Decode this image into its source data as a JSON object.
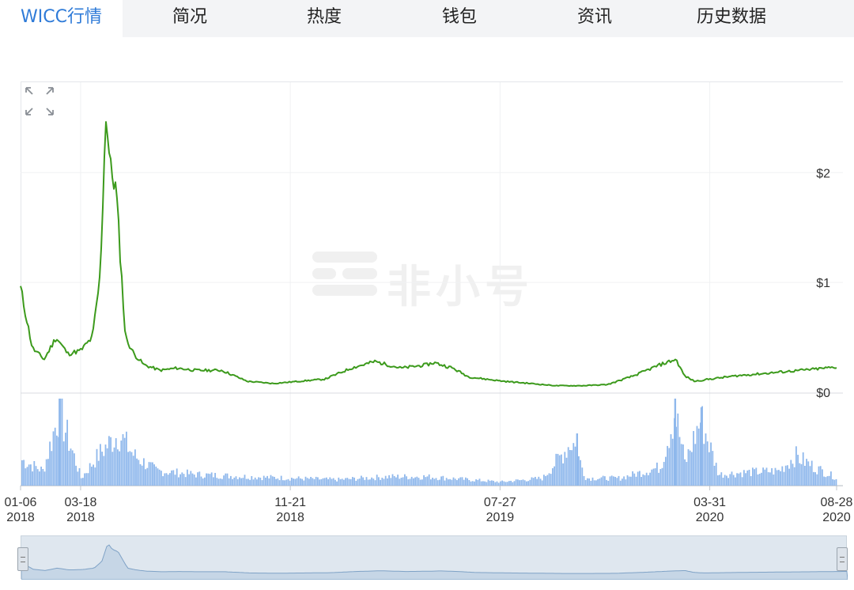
{
  "tabs": [
    {
      "label": "WICC行情",
      "active": true
    },
    {
      "label": "简况",
      "active": false
    },
    {
      "label": "热度",
      "active": false
    },
    {
      "label": "钱包",
      "active": false
    },
    {
      "label": "资讯",
      "active": false
    },
    {
      "label": "历史数据",
      "active": false
    }
  ],
  "watermark": {
    "text": "非小号"
  },
  "colors": {
    "price_line": "#3c9a1c",
    "volume_bar": "#8fb8ec",
    "tab_active": "#2f7bd8"
  },
  "icons": {
    "fullscreen": "expand-arrows-icon",
    "navigator_handle": "drag-handle-icon"
  },
  "chart_data": {
    "type": "line",
    "title": "",
    "xlabel": "",
    "ylabel": "",
    "y_ticks": [
      "$2",
      "$1",
      "$0"
    ],
    "ylim": [
      0,
      2.6
    ],
    "x_ticks": [
      {
        "date": "01-06",
        "year": "2018"
      },
      {
        "date": "03-18",
        "year": "2018"
      },
      {
        "date": "11-21",
        "year": "2018"
      },
      {
        "date": "07-27",
        "year": "2019"
      },
      {
        "date": "03-31",
        "year": "2020"
      },
      {
        "date": "08-28",
        "year": "2020"
      }
    ],
    "series": [
      {
        "name": "",
        "x": [
          "2018-01-06",
          "2018-01-20",
          "2018-02-03",
          "2018-02-17",
          "2018-03-03",
          "2018-03-18",
          "2018-04-01",
          "2018-04-10",
          "2018-04-17",
          "2018-04-22",
          "2018-04-29",
          "2018-05-10",
          "2018-05-20",
          "2018-06-01",
          "2018-06-20",
          "2018-07-10",
          "2018-08-01",
          "2018-09-01",
          "2018-10-01",
          "2018-11-01",
          "2018-12-01",
          "2019-01-01",
          "2019-02-01",
          "2019-03-01",
          "2019-04-01",
          "2019-05-01",
          "2019-05-10",
          "2019-06-01",
          "2019-06-20",
          "2019-07-10",
          "2019-08-01",
          "2019-09-01",
          "2019-10-01",
          "2019-11-01",
          "2019-12-01",
          "2020-01-01",
          "2020-02-01",
          "2020-02-20",
          "2020-03-01",
          "2020-03-13",
          "2020-03-31",
          "2020-05-01",
          "2020-06-01",
          "2020-07-01",
          "2020-08-01",
          "2020-08-28"
        ],
        "values": [
          0.95,
          0.4,
          0.3,
          0.5,
          0.35,
          0.38,
          0.5,
          1.05,
          2.55,
          2.05,
          1.85,
          0.5,
          0.35,
          0.25,
          0.2,
          0.22,
          0.2,
          0.2,
          0.1,
          0.08,
          0.1,
          0.12,
          0.22,
          0.28,
          0.22,
          0.25,
          0.27,
          0.22,
          0.14,
          0.12,
          0.1,
          0.08,
          0.06,
          0.06,
          0.07,
          0.15,
          0.25,
          0.3,
          0.15,
          0.1,
          0.12,
          0.15,
          0.17,
          0.19,
          0.21,
          0.23
        ]
      }
    ],
    "volume": {
      "x": [
        "2018-01-06",
        "2018-02-01",
        "2018-02-20",
        "2018-03-18",
        "2018-04-10",
        "2018-05-01",
        "2018-05-20",
        "2018-06-15",
        "2018-08-01",
        "2018-10-01",
        "2018-11-21",
        "2019-01-15",
        "2019-03-15",
        "2019-05-01",
        "2019-07-27",
        "2019-09-15",
        "2019-10-20",
        "2019-11-05",
        "2019-12-15",
        "2020-02-01",
        "2020-02-18",
        "2020-03-01",
        "2020-03-20",
        "2020-04-10",
        "2020-05-15",
        "2020-06-20",
        "2020-07-10",
        "2020-08-01",
        "2020-08-28"
      ],
      "values": [
        0.35,
        0.2,
        1.0,
        0.1,
        0.45,
        0.7,
        0.4,
        0.2,
        0.15,
        0.12,
        0.1,
        0.08,
        0.12,
        0.12,
        0.05,
        0.1,
        0.6,
        0.1,
        0.1,
        0.25,
        1.0,
        0.3,
        0.9,
        0.15,
        0.18,
        0.2,
        0.4,
        0.25,
        0.1
      ]
    },
    "grid": true,
    "legend": "none"
  }
}
